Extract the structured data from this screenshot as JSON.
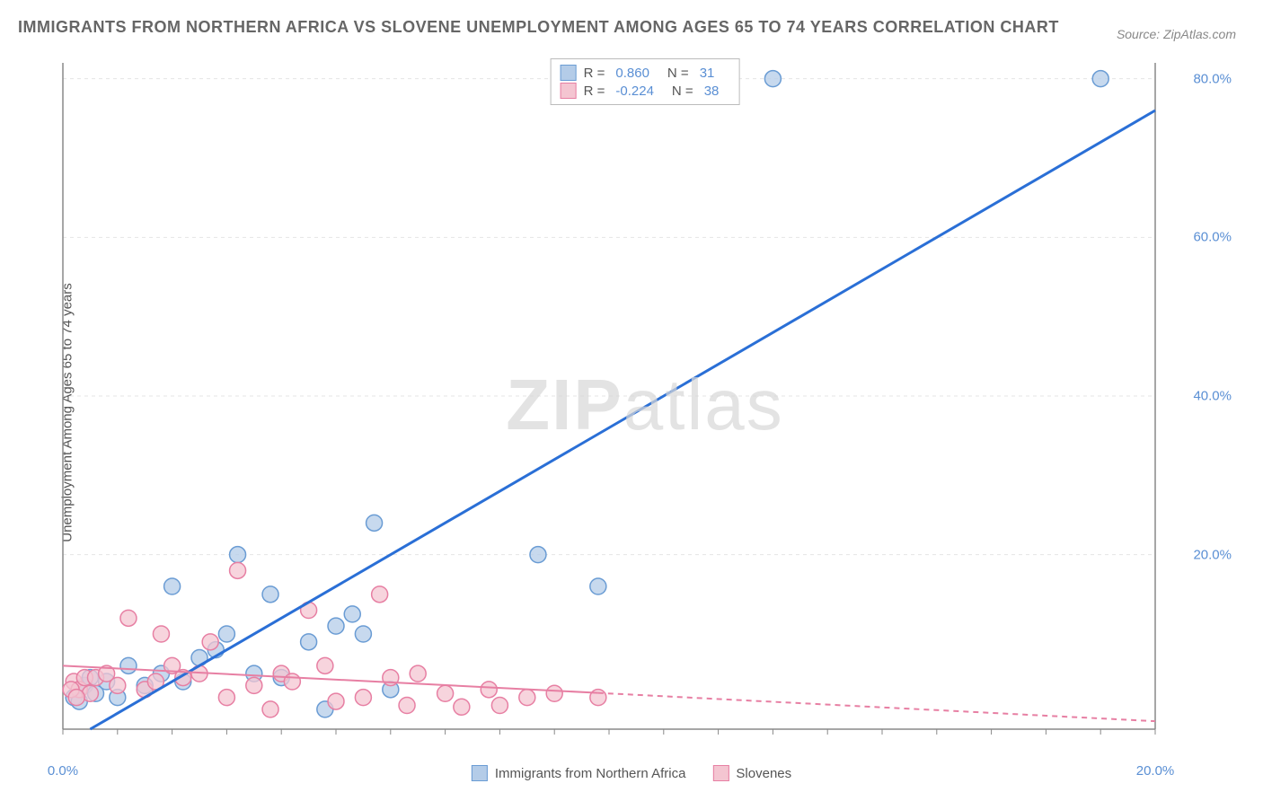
{
  "title": "IMMIGRANTS FROM NORTHERN AFRICA VS SLOVENE UNEMPLOYMENT AMONG AGES 65 TO 74 YEARS CORRELATION CHART",
  "source": "Source: ZipAtlas.com",
  "watermark_bold": "ZIP",
  "watermark_rest": "atlas",
  "y_axis_label": "Unemployment Among Ages 65 to 74 years",
  "chart": {
    "type": "scatter",
    "background_color": "#ffffff",
    "grid_color": "#e5e5e5",
    "axis_color": "#888888",
    "tick_color": "#888888",
    "label_color": "#5a8fd4",
    "title_color": "#666666",
    "xlim": [
      0,
      20
    ],
    "ylim": [
      -2,
      82
    ],
    "x_ticks": [
      0,
      20
    ],
    "y_ticks": [
      20,
      40,
      60,
      80
    ],
    "x_tick_labels": [
      "0.0%",
      "20.0%"
    ],
    "y_tick_labels": [
      "20.0%",
      "40.0%",
      "60.0%",
      "80.0%"
    ],
    "x_minor_tick_interval": 1,
    "series": [
      {
        "name": "Immigrants from Northern Africa",
        "color_fill": "#b4cce8",
        "color_stroke": "#6a9cd4",
        "marker_radius": 9,
        "marker_opacity": 0.75,
        "R": "0.860",
        "N": "31",
        "trend": {
          "x1": 0.5,
          "y1": -2.0,
          "x2": 20.0,
          "y2": 76.0,
          "color": "#2a6fd6",
          "width": 3,
          "dash_beyond_x": null
        },
        "points": [
          {
            "x": 0.2,
            "y": 2.0
          },
          {
            "x": 0.3,
            "y": 3.0
          },
          {
            "x": 0.4,
            "y": 3.5
          },
          {
            "x": 0.5,
            "y": 4.5
          },
          {
            "x": 0.6,
            "y": 2.5
          },
          {
            "x": 0.8,
            "y": 4.0
          },
          {
            "x": 1.2,
            "y": 6.0
          },
          {
            "x": 1.5,
            "y": 3.5
          },
          {
            "x": 1.8,
            "y": 5.0
          },
          {
            "x": 2.0,
            "y": 16.0
          },
          {
            "x": 2.2,
            "y": 4.0
          },
          {
            "x": 2.5,
            "y": 7.0
          },
          {
            "x": 2.8,
            "y": 8.0
          },
          {
            "x": 3.0,
            "y": 10.0
          },
          {
            "x": 3.2,
            "y": 20.0
          },
          {
            "x": 3.5,
            "y": 5.0
          },
          {
            "x": 3.8,
            "y": 15.0
          },
          {
            "x": 4.0,
            "y": 4.5
          },
          {
            "x": 4.5,
            "y": 9.0
          },
          {
            "x": 4.8,
            "y": 0.5
          },
          {
            "x": 5.0,
            "y": 11.0
          },
          {
            "x": 5.3,
            "y": 12.5
          },
          {
            "x": 5.5,
            "y": 10.0
          },
          {
            "x": 5.7,
            "y": 24.0
          },
          {
            "x": 6.0,
            "y": 3.0
          },
          {
            "x": 8.7,
            "y": 20.0
          },
          {
            "x": 9.8,
            "y": 16.0
          },
          {
            "x": 13.0,
            "y": 80.0
          },
          {
            "x": 19.0,
            "y": 80.0
          },
          {
            "x": 1.0,
            "y": 2.0
          },
          {
            "x": 0.3,
            "y": 1.5
          }
        ]
      },
      {
        "name": "Slovenes",
        "color_fill": "#f4c5d1",
        "color_stroke": "#e77fa3",
        "marker_radius": 9,
        "marker_opacity": 0.75,
        "R": "-0.224",
        "N": "38",
        "trend": {
          "x1": 0.0,
          "y1": 6.0,
          "x2": 20.0,
          "y2": -1.0,
          "color": "#e77fa3",
          "width": 2,
          "dash_beyond_x": 9.8
        },
        "points": [
          {
            "x": 0.2,
            "y": 4.0
          },
          {
            "x": 0.3,
            "y": 3.0
          },
          {
            "x": 0.4,
            "y": 4.5
          },
          {
            "x": 0.5,
            "y": 2.5
          },
          {
            "x": 0.6,
            "y": 4.5
          },
          {
            "x": 0.8,
            "y": 5.0
          },
          {
            "x": 1.0,
            "y": 3.5
          },
          {
            "x": 1.2,
            "y": 12.0
          },
          {
            "x": 1.5,
            "y": 3.0
          },
          {
            "x": 1.7,
            "y": 4.0
          },
          {
            "x": 1.8,
            "y": 10.0
          },
          {
            "x": 2.0,
            "y": 6.0
          },
          {
            "x": 2.2,
            "y": 4.5
          },
          {
            "x": 2.5,
            "y": 5.0
          },
          {
            "x": 2.7,
            "y": 9.0
          },
          {
            "x": 3.0,
            "y": 2.0
          },
          {
            "x": 3.2,
            "y": 18.0
          },
          {
            "x": 3.5,
            "y": 3.5
          },
          {
            "x": 3.8,
            "y": 0.5
          },
          {
            "x": 4.0,
            "y": 5.0
          },
          {
            "x": 4.2,
            "y": 4.0
          },
          {
            "x": 4.5,
            "y": 13.0
          },
          {
            "x": 4.8,
            "y": 6.0
          },
          {
            "x": 5.0,
            "y": 1.5
          },
          {
            "x": 5.5,
            "y": 2.0
          },
          {
            "x": 5.8,
            "y": 15.0
          },
          {
            "x": 6.0,
            "y": 4.5
          },
          {
            "x": 6.3,
            "y": 1.0
          },
          {
            "x": 6.5,
            "y": 5.0
          },
          {
            "x": 7.0,
            "y": 2.5
          },
          {
            "x": 7.3,
            "y": 0.8
          },
          {
            "x": 7.8,
            "y": 3.0
          },
          {
            "x": 8.0,
            "y": 1.0
          },
          {
            "x": 8.5,
            "y": 2.0
          },
          {
            "x": 9.0,
            "y": 2.5
          },
          {
            "x": 9.8,
            "y": 2.0
          },
          {
            "x": 0.15,
            "y": 3.0
          },
          {
            "x": 0.25,
            "y": 2.0
          }
        ]
      }
    ]
  },
  "legend_bottom": [
    {
      "swatch_fill": "#b4cce8",
      "swatch_stroke": "#6a9cd4",
      "label": "Immigrants from Northern Africa"
    },
    {
      "swatch_fill": "#f4c5d1",
      "swatch_stroke": "#e77fa3",
      "label": "Slovenes"
    }
  ]
}
